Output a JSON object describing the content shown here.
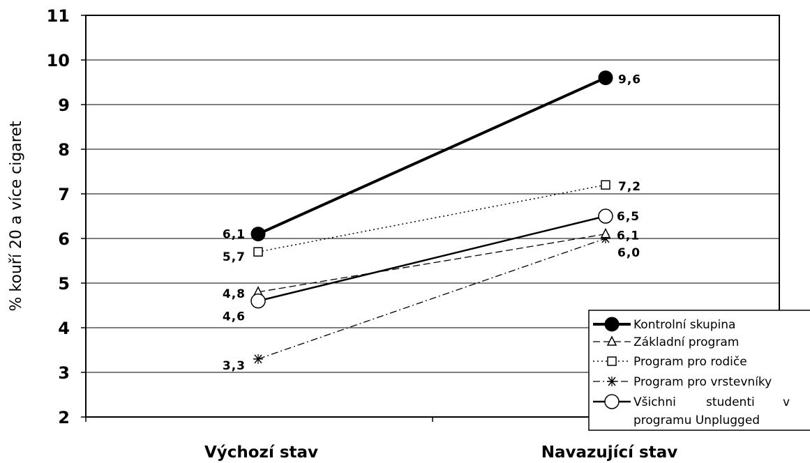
{
  "chart_data": {
    "type": "line",
    "categories": [
      "Výchozí stav",
      "Navazující stav"
    ],
    "ylabel": "% kouří 20 a více cigaret",
    "xlabel": "",
    "ylim": [
      2,
      11
    ],
    "yticks": [
      "2",
      "3",
      "4",
      "5",
      "6",
      "7",
      "8",
      "9",
      "10",
      "11"
    ],
    "grid": true,
    "legend_position": "bottom-right",
    "series": [
      {
        "name": "Kontrolní skupina",
        "values": [
          6.1,
          9.6
        ],
        "labels": [
          "6,1",
          "9,6"
        ],
        "line": "solid-thick",
        "marker": "filled-circle",
        "color": "#000000"
      },
      {
        "name": "Základní program",
        "values": [
          4.8,
          6.1
        ],
        "labels": [
          "4,8",
          "6,1"
        ],
        "line": "dashed",
        "marker": "triangle",
        "color": "#000000"
      },
      {
        "name": "Program pro rodiče",
        "values": [
          5.7,
          7.2
        ],
        "labels": [
          "5,7",
          "7,2"
        ],
        "line": "dotted",
        "marker": "square",
        "color": "#000000"
      },
      {
        "name": "Program pro vrstevníky",
        "values": [
          3.3,
          6.0
        ],
        "labels": [
          "3,3",
          "6,0"
        ],
        "line": "dash-dot",
        "marker": "star",
        "color": "#000000"
      },
      {
        "name": "Všichni studenti v programu Unplugged",
        "values": [
          4.6,
          6.5
        ],
        "labels": [
          "4,6",
          "6,5"
        ],
        "line": "solid",
        "marker": "open-circle",
        "color": "#000000"
      }
    ]
  }
}
